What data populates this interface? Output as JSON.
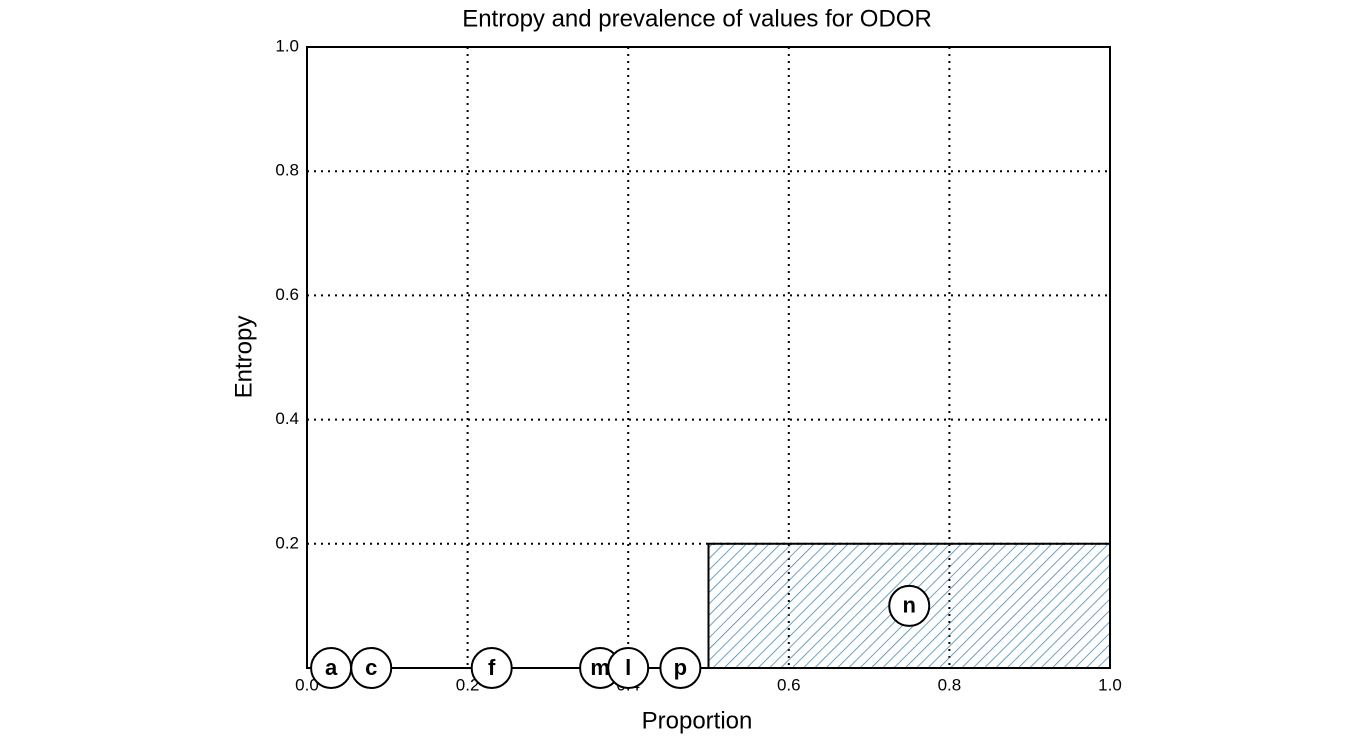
{
  "chart_data": {
    "type": "mosaic",
    "title": "Entropy and prevalence of values for ODOR",
    "x_label": "Proportion",
    "y_label": "Entropy",
    "categories": [
      "a",
      "c",
      "f",
      "m",
      "l",
      "p",
      "n"
    ],
    "proportions": [
      0.06,
      0.04,
      0.26,
      0.01,
      0.06,
      0.07,
      0.5
    ],
    "values": [
      0,
      0,
      0,
      0,
      0,
      0,
      0.2
    ],
    "color": "#2b7bb9",
    "xlim": [
      0,
      1
    ],
    "ylim": [
      0,
      1
    ],
    "xticks": [
      {
        "value": 0,
        "label": "0.0"
      },
      0.2,
      0.4,
      0.6,
      0.8,
      {
        "value": 1,
        "label": "1.0"
      }
    ],
    "yticks": [
      0.2,
      0.4,
      0.6,
      0.8,
      {
        "value": 1,
        "label": "1.0"
      }
    ],
    "grid": true
  }
}
